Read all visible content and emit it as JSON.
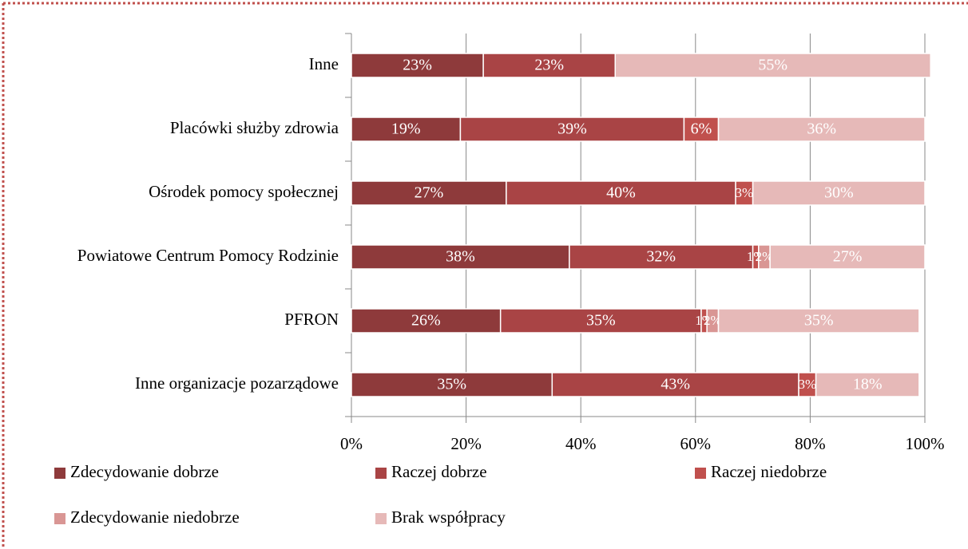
{
  "chart_data": {
    "type": "stacked-barh",
    "categories": [
      "Inne",
      "Placówki służby zdrowia",
      "Ośrodek pomocy społecznej",
      "Powiatowe Centrum Pomocy Rodzinie",
      "PFRON",
      "Inne organizacje pozarządowe"
    ],
    "series": [
      {
        "name": "Zdecydowanie dobrze",
        "color": "#8e3a3b",
        "values": [
          23,
          19,
          27,
          38,
          26,
          35
        ],
        "value_labels": [
          "23%",
          "19%",
          "27%",
          "38%",
          "26%",
          "35%"
        ]
      },
      {
        "name": "Raczej dobrze",
        "color": "#a94445",
        "values": [
          23,
          39,
          40,
          32,
          35,
          43
        ],
        "value_labels": [
          "23%",
          "39%",
          "40%",
          "32%",
          "35%",
          "43%"
        ]
      },
      {
        "name": "Raczej niedobrze",
        "color": "#c0504d",
        "values": [
          0,
          6,
          3,
          1,
          1,
          3
        ],
        "value_labels": [
          null,
          "6%",
          "3%",
          "1%",
          "1%",
          "3%"
        ]
      },
      {
        "name": "Zdecydowanie niedobrze",
        "color": "#d99694",
        "values": [
          0,
          0,
          0,
          2,
          2,
          0
        ],
        "value_labels": [
          null,
          null,
          null,
          "2%",
          "2%",
          null
        ]
      },
      {
        "name": "Brak współpracy",
        "color": "#e6b9b8",
        "values": [
          55,
          36,
          30,
          27,
          35,
          18
        ],
        "value_labels": [
          "55%",
          "36%",
          "30%",
          "27%",
          "35%",
          "18%"
        ]
      }
    ],
    "xlim": [
      0,
      100
    ],
    "xticks": [
      {
        "value": 0,
        "label": "0%"
      },
      {
        "value": 20,
        "label": "20%"
      },
      {
        "value": 40,
        "label": "40%"
      },
      {
        "value": 60,
        "label": "60%"
      },
      {
        "value": 80,
        "label": "80%"
      },
      {
        "value": 100,
        "label": "100%"
      }
    ],
    "grid": true
  }
}
